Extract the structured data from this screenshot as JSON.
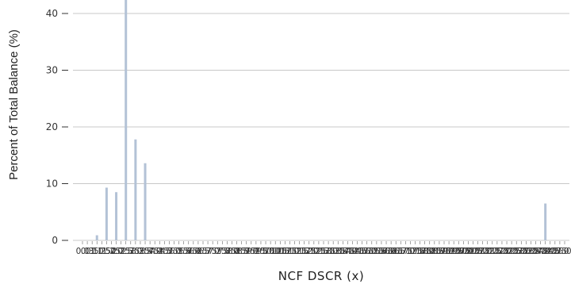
{
  "chart_data": {
    "type": "bar",
    "xlabel": "NCF DSCR (x)",
    "ylabel": "Percent of Total Balance (%)",
    "ylim": [
      0,
      43
    ],
    "yticks": [
      0,
      10,
      20,
      30,
      40
    ],
    "grid": true,
    "colors": {
      "bar": "#b3c2d6",
      "grid": "#c8c8c8",
      "axis_text": "#333333"
    },
    "categories": [
      "0.0",
      "0.3",
      "0.5",
      "1.0",
      "1.25",
      "1.50",
      "1.75",
      "2.0",
      "2.25",
      "2.5",
      "2.75",
      "3.0",
      "3.25",
      "3.5",
      "3.75",
      "4.0",
      "4.25",
      "4.5",
      "4.75",
      "5.0",
      "5.25",
      "5.5",
      "5.75",
      "6.0",
      "6.25",
      "6.5",
      "6.75",
      "7.0",
      "7.25",
      "7.5",
      "7.75",
      "8.0",
      "8.25",
      "8.5",
      "8.75",
      "9.0",
      "9.25",
      "9.5",
      "9.75",
      "10.0",
      "10.25",
      "10.5",
      "10.75",
      "11.0",
      "11.25",
      "11.5",
      "11.75",
      "12.0",
      "12.25",
      "12.5",
      "12.75",
      "13.0",
      "13.25",
      "13.5",
      "13.75",
      "14.0",
      "14.25",
      "14.5",
      "14.75",
      "15.0",
      "15.25",
      "15.5",
      "15.75",
      "16.0",
      "16.25",
      "16.5",
      "16.75",
      "17.0",
      "17.25",
      "17.5",
      "17.75",
      "18.0",
      "18.25",
      "18.5",
      "18.75",
      "19.0",
      "19.25",
      "19.5",
      "19.75",
      "20.0",
      "20.25",
      "20.5",
      "20.75",
      "21.0",
      "21.25",
      "21.5",
      "21.75",
      "22.0",
      "22.25",
      "22.5",
      "22.75",
      "23.0",
      "23.25",
      "23.5",
      "23.75",
      "24.0",
      "24.25",
      "24.5",
      "24.75",
      "25.0",
      "25.0x"
    ],
    "values": [
      0,
      0,
      0,
      0.9,
      0,
      9.3,
      0,
      8.5,
      0,
      43,
      0,
      17.8,
      0,
      13.6,
      0,
      0,
      0,
      0,
      0,
      0,
      0,
      0,
      0,
      0,
      0,
      0,
      0,
      0,
      0,
      0,
      0,
      0,
      0,
      0,
      0,
      0,
      0,
      0,
      0,
      0,
      0,
      0,
      0,
      0,
      0,
      0,
      0,
      0,
      0,
      0,
      0,
      0,
      0,
      0,
      0,
      0,
      0,
      0,
      0,
      0,
      0,
      0,
      0,
      0,
      0,
      0,
      0,
      0,
      0,
      0,
      0,
      0,
      0,
      0,
      0,
      0,
      0,
      0,
      0,
      0,
      0,
      0,
      0,
      0,
      0,
      0,
      0,
      0,
      0,
      0,
      0,
      0,
      0,
      0,
      0,
      0,
      6.5,
      0,
      0,
      0,
      0
    ]
  }
}
